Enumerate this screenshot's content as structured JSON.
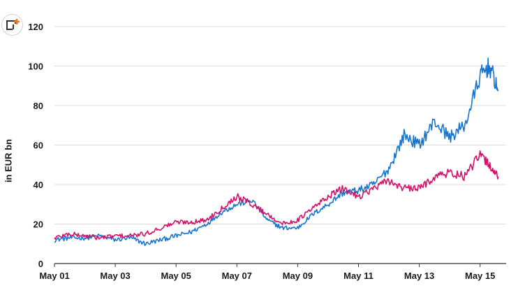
{
  "toolbar": {
    "add_icon": "add-to-dashboard-icon"
  },
  "chart_data": {
    "type": "line",
    "title": "",
    "xlabel": "",
    "ylabel": "in EUR bn",
    "ylim": [
      0,
      120
    ],
    "y_ticks": [
      0,
      20,
      40,
      60,
      80,
      100,
      120
    ],
    "x_ticks": [
      "May 01",
      "May 03",
      "May 05",
      "May 07",
      "May 09",
      "May 11",
      "May 13",
      "May 15"
    ],
    "grid": true,
    "legend": "none",
    "x": [
      "May 01",
      "May 01.5",
      "May 02",
      "May 02.5",
      "May 03",
      "May 03.5",
      "May 04",
      "May 04.5",
      "May 05",
      "May 05.5",
      "May 06",
      "May 06.5",
      "May 07",
      "May 07.5",
      "May 08",
      "May 08.5",
      "May 09",
      "May 09.5",
      "May 10",
      "May 10.5",
      "May 11",
      "May 11.5",
      "May 12",
      "May 12.5",
      "May 13",
      "May 13.5",
      "May 14",
      "May 14.5",
      "May 15",
      "May 15.3",
      "May 15.6"
    ],
    "series": [
      {
        "color": "#1874cd",
        "values": [
          12,
          13,
          13,
          14,
          12,
          13,
          10,
          12,
          14,
          16,
          20,
          26,
          30,
          32,
          22,
          18,
          18,
          25,
          30,
          36,
          37,
          40,
          48,
          65,
          60,
          72,
          64,
          70,
          95,
          100,
          88
        ]
      },
      {
        "color": "#d4106a",
        "values": [
          13,
          15,
          14,
          13,
          14,
          14,
          15,
          18,
          21,
          21,
          22,
          28,
          34,
          30,
          25,
          20,
          22,
          28,
          34,
          38,
          34,
          38,
          42,
          38,
          38,
          44,
          46,
          44,
          55,
          50,
          44
        ]
      }
    ]
  }
}
